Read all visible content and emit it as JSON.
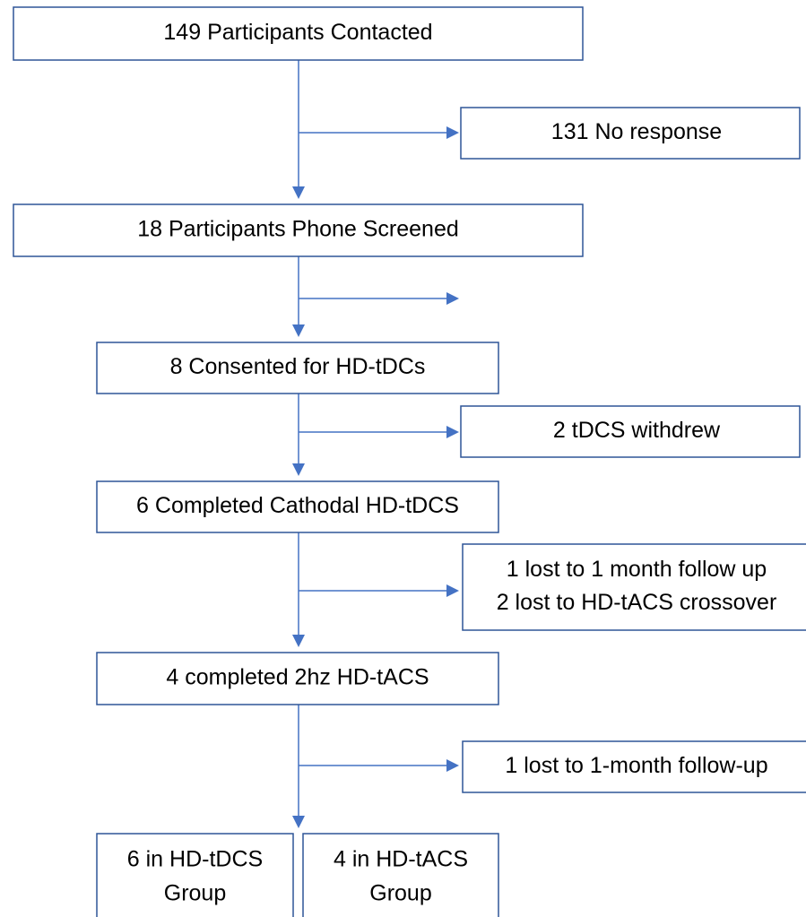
{
  "nodes": [
    {
      "label": "149 Participants Contacted"
    },
    {
      "label": "18 Participants Phone Screened"
    },
    {
      "label": "8 Consented for HD-tDCs"
    },
    {
      "label": "6 Completed Cathodal HD-tDCS"
    },
    {
      "label": "4 completed 2hz HD-tACS"
    }
  ],
  "exclusions": [
    {
      "lines": [
        "131 No response"
      ]
    },
    {
      "lines": [
        "2 tDCS withdrew"
      ]
    },
    {
      "lines": [
        "1 lost to 1 month follow up",
        "2 lost to HD-tACS crossover"
      ]
    },
    {
      "lines": [
        "1 lost to 1-month follow-up"
      ]
    }
  ],
  "groups": [
    {
      "lines": [
        "6 in HD-tDCS",
        "Group"
      ]
    },
    {
      "lines": [
        "4 in HD-tACS",
        "Group"
      ]
    }
  ]
}
